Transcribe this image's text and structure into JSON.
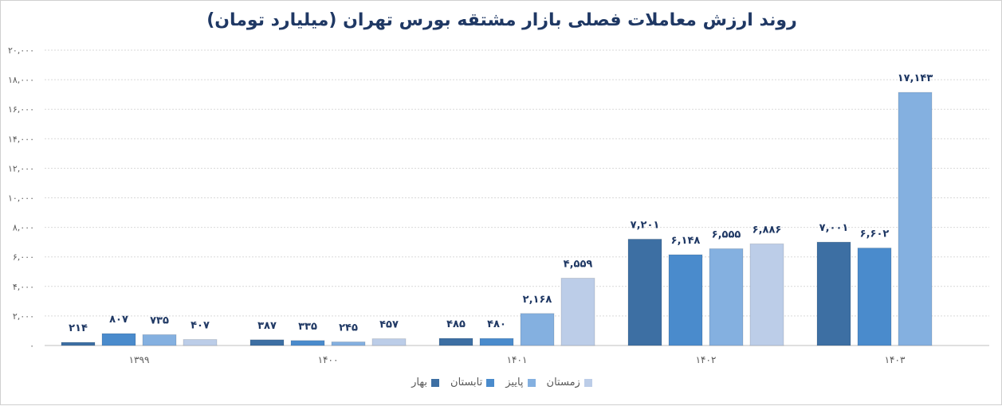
{
  "chart_data": {
    "type": "bar",
    "title": "روند ارزش معاملات فصلی بازار مشتقه بورس تهران (میلیارد تومان)",
    "categories": [
      "۱۳۹۹",
      "۱۴۰۰",
      "۱۴۰۱",
      "۱۴۰۲",
      "۱۴۰۳"
    ],
    "series": [
      {
        "name": "بهار",
        "color": "#3d6fa3",
        "values": [
          214,
          387,
          485,
          7201,
          7001
        ],
        "labels": [
          "۲۱۴",
          "۳۸۷",
          "۴۸۵",
          "۷,۲۰۱",
          "۷,۰۰۱"
        ]
      },
      {
        "name": "تابستان",
        "color": "#4a8bcc",
        "values": [
          807,
          335,
          480,
          6148,
          6602
        ],
        "labels": [
          "۸۰۷",
          "۳۳۵",
          "۴۸۰",
          "۶,۱۴۸",
          "۶,۶۰۲"
        ]
      },
      {
        "name": "پاییز",
        "color": "#84b0e0",
        "values": [
          735,
          245,
          2168,
          6555,
          17143
        ],
        "labels": [
          "۷۳۵",
          "۲۴۵",
          "۲,۱۶۸",
          "۶,۵۵۵",
          "۱۷,۱۴۳"
        ]
      },
      {
        "name": "زمستان",
        "color": "#bccde8",
        "values": [
          407,
          457,
          4559,
          6886,
          null
        ],
        "labels": [
          "۴۰۷",
          "۴۵۷",
          "۴,۵۵۹",
          "۶,۸۸۶",
          ""
        ]
      }
    ],
    "ylim": [
      0,
      20000
    ],
    "yticks": [
      0,
      2000,
      4000,
      6000,
      8000,
      10000,
      12000,
      14000,
      16000,
      18000,
      20000
    ],
    "ytick_labels": [
      "۰",
      "۲,۰۰۰",
      "۴,۰۰۰",
      "۶,۰۰۰",
      "۸,۰۰۰",
      "۱۰,۰۰۰",
      "۱۲,۰۰۰",
      "۱۴,۰۰۰",
      "۱۶,۰۰۰",
      "۱۸,۰۰۰",
      "۲۰,۰۰۰"
    ],
    "grid": true,
    "legend_position": "bottom",
    "colors": {
      "title": "#1f3864",
      "data_label": "#1f3864",
      "axis_text": "#595959",
      "grid": "#d9d9d9"
    }
  }
}
